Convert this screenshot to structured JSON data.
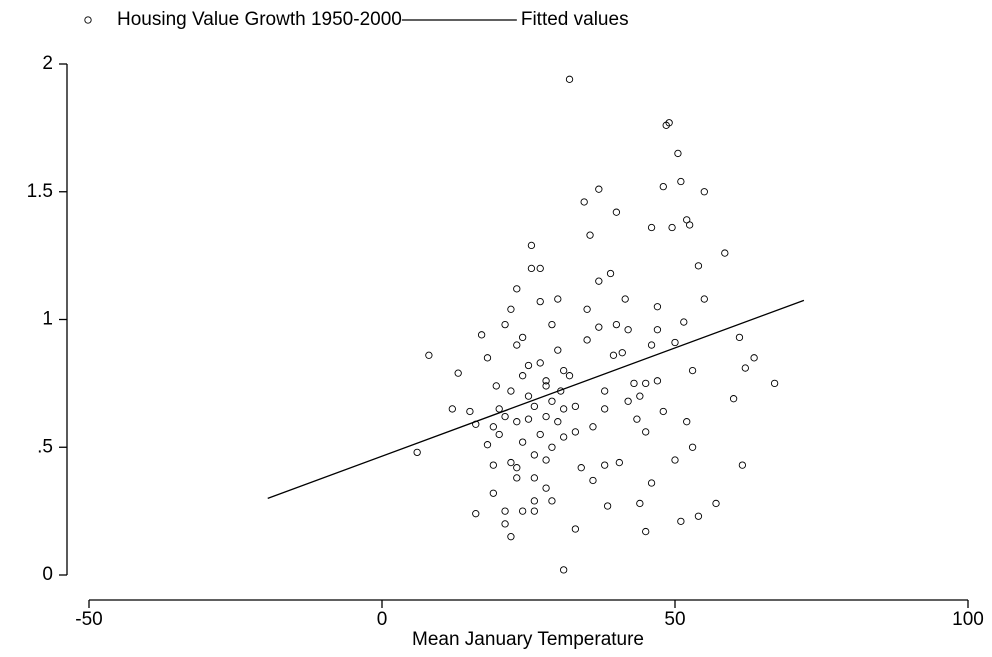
{
  "chart_data": {
    "type": "scatter",
    "xlabel": "Mean January Temperature",
    "xlim": [
      -50,
      100
    ],
    "xticks": [
      -50,
      0,
      50,
      100
    ],
    "ylim": [
      0,
      2
    ],
    "yticks": [
      0,
      {
        "value": 0.5,
        "label": ".5"
      },
      1,
      1.5,
      2
    ],
    "series": [
      {
        "name": "Housing Value Growth 1950-2000",
        "color": "#000000",
        "marker": "hollow-circle",
        "x": [
          6,
          8,
          13,
          12,
          15,
          16,
          16,
          17,
          18,
          18,
          19,
          19,
          19.5,
          20,
          21,
          21,
          21,
          22,
          22,
          23,
          23,
          23,
          24,
          24,
          25,
          25.5,
          25.5,
          26,
          26,
          27,
          27,
          28,
          28,
          29,
          29,
          30,
          30.5,
          31,
          31,
          32,
          32,
          33,
          33,
          34,
          34.5,
          35,
          35.5,
          36,
          37,
          37,
          38,
          38,
          38.5,
          39,
          39.5,
          40,
          40.5,
          41.5,
          42,
          43,
          43.5,
          44,
          45,
          45,
          46,
          46,
          47,
          47,
          48,
          48.5,
          49,
          49.5,
          50,
          50.5,
          51,
          51,
          51.5,
          52,
          52.5,
          53,
          54,
          54,
          55,
          55,
          57,
          58.5,
          60,
          61,
          61.5,
          62,
          63.5,
          67,
          25,
          26,
          27,
          28,
          24,
          23,
          22,
          27,
          29,
          30,
          31,
          26,
          28,
          25,
          24,
          29,
          30,
          33,
          35,
          36,
          37,
          38,
          40,
          41,
          44,
          46,
          47,
          48,
          50,
          52,
          53,
          45,
          42,
          20,
          21,
          19,
          22,
          23,
          26,
          28,
          31
        ],
        "y": [
          0.48,
          0.86,
          0.79,
          0.65,
          0.64,
          0.24,
          0.59,
          0.94,
          0.85,
          0.51,
          0.43,
          0.32,
          0.74,
          0.65,
          0.2,
          0.25,
          0.98,
          1.04,
          0.15,
          0.42,
          1.12,
          0.9,
          0.78,
          0.25,
          0.61,
          1.29,
          1.2,
          0.47,
          0.25,
          1.07,
          1.2,
          0.76,
          0.34,
          0.29,
          0.98,
          1.08,
          0.72,
          0.54,
          0.02,
          1.94,
          0.78,
          0.56,
          0.18,
          0.42,
          1.46,
          1.04,
          1.33,
          0.37,
          1.15,
          1.51,
          0.72,
          0.43,
          0.27,
          1.18,
          0.86,
          1.42,
          0.44,
          1.08,
          0.96,
          0.75,
          0.61,
          0.28,
          0.17,
          0.56,
          0.36,
          1.36,
          1.05,
          0.76,
          1.52,
          1.76,
          1.77,
          1.36,
          0.45,
          1.65,
          1.54,
          0.21,
          0.99,
          1.39,
          1.37,
          0.8,
          0.23,
          1.21,
          1.08,
          1.5,
          0.28,
          1.26,
          0.69,
          0.93,
          0.43,
          0.81,
          0.85,
          0.75,
          0.7,
          0.66,
          0.55,
          0.62,
          0.52,
          0.6,
          0.72,
          0.83,
          0.68,
          0.88,
          0.8,
          0.38,
          0.45,
          0.82,
          0.93,
          0.5,
          0.6,
          0.66,
          0.92,
          0.58,
          0.97,
          0.65,
          0.98,
          0.87,
          0.7,
          0.9,
          0.96,
          0.64,
          0.91,
          0.6,
          0.5,
          0.75,
          0.68,
          0.55,
          0.62,
          0.58,
          0.44,
          0.38,
          0.29,
          0.74,
          0.65
        ]
      },
      {
        "name": "Fitted values",
        "color": "#000000",
        "marker": "line",
        "x": [
          -19.5,
          72
        ],
        "y": [
          0.3,
          1.075
        ]
      }
    ]
  }
}
